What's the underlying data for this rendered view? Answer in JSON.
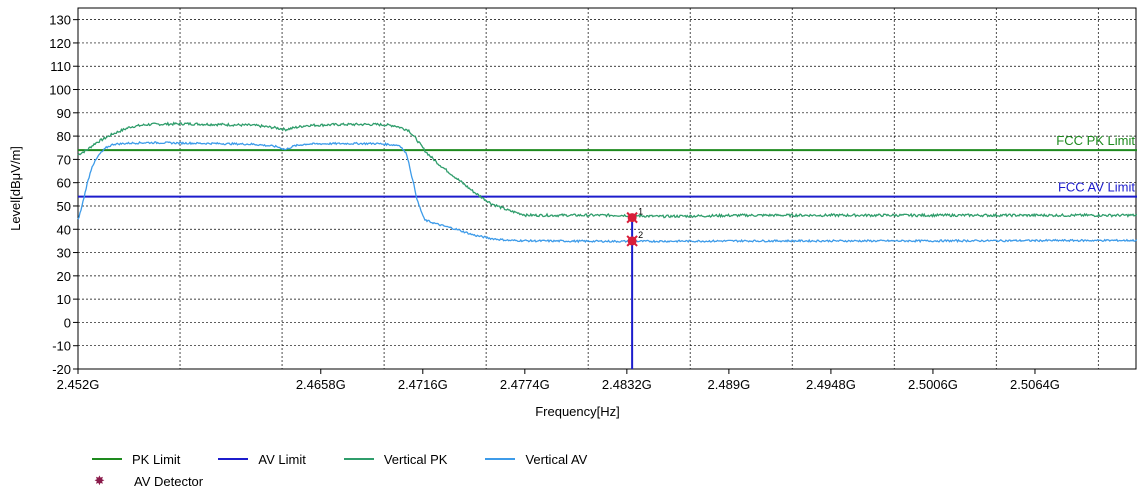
{
  "chart_data": {
    "type": "line",
    "xlabel": "Frequency[Hz]",
    "ylabel": "Level[dBμV/m]",
    "xlim": [
      2.452,
      2.5122
    ],
    "ylim": [
      -20,
      135
    ],
    "x_ticks": [
      {
        "value": 2.452,
        "label": "2.452G"
      },
      {
        "value": 2.4658,
        "label": "2.4658G"
      },
      {
        "value": 2.4716,
        "label": "2.4716G"
      },
      {
        "value": 2.4774,
        "label": "2.4774G"
      },
      {
        "value": 2.4832,
        "label": "2.4832G"
      },
      {
        "value": 2.489,
        "label": "2.489G"
      },
      {
        "value": 2.4948,
        "label": "2.4948G"
      },
      {
        "value": 2.5006,
        "label": "2.5006G"
      },
      {
        "value": 2.5064,
        "label": "2.5064G"
      }
    ],
    "x_grid": [
      2.452,
      2.4578,
      2.4636,
      2.4694,
      2.4752,
      2.481,
      2.4868,
      2.4926,
      2.4984,
      2.5042,
      2.51
    ],
    "y_ticks": [
      130,
      120,
      110,
      100,
      90,
      80,
      70,
      60,
      50,
      40,
      30,
      20,
      10,
      0,
      -10,
      -20
    ],
    "grid": true,
    "limits": [
      {
        "name": "PK Limit",
        "label": "FCC PK Limit",
        "value": 74,
        "color": "#1e8a1e"
      },
      {
        "name": "AV Limit",
        "label": "FCC AV Limit",
        "value": 54,
        "color": "#1c1ccc"
      }
    ],
    "series": [
      {
        "name": "Vertical PK",
        "color": "#2f9d6b",
        "x": [
          2.452,
          2.4525,
          2.453,
          2.454,
          2.455,
          2.456,
          2.458,
          2.46,
          2.462,
          2.4633,
          2.4638,
          2.4643,
          2.465,
          2.467,
          2.469,
          2.47,
          2.4708,
          2.4713,
          2.4718,
          2.4725,
          2.4735,
          2.4745,
          2.4755,
          2.4765,
          2.4775,
          2.479,
          2.483,
          2.485,
          2.49,
          2.495,
          2.5,
          2.505,
          2.51,
          2.5122
        ],
        "y": [
          72,
          74,
          77,
          81,
          84,
          85,
          85.3,
          85,
          84.6,
          83.5,
          82.8,
          83.6,
          84.6,
          85,
          85,
          84.5,
          82.5,
          78,
          73,
          68,
          62,
          56,
          51,
          48,
          46,
          46,
          46,
          45.5,
          46,
          46,
          46,
          46,
          46,
          46
        ]
      },
      {
        "name": "Vertical AV",
        "color": "#3d9be9",
        "x": [
          2.452,
          2.4522,
          2.4525,
          2.4528,
          2.4532,
          2.4536,
          2.454,
          2.455,
          2.456,
          2.458,
          2.46,
          2.462,
          2.4633,
          2.4638,
          2.4643,
          2.465,
          2.467,
          2.469,
          2.4703,
          2.4707,
          2.471,
          2.4713,
          2.4717,
          2.4725,
          2.4735,
          2.4745,
          2.4755,
          2.4765,
          2.478,
          2.483,
          2.49,
          2.5,
          2.51,
          2.5122
        ],
        "y": [
          44,
          49,
          59,
          67,
          72,
          75,
          76.5,
          77,
          77.2,
          77,
          76.8,
          76.5,
          75.5,
          74.2,
          75.8,
          76.6,
          76.8,
          76.8,
          76,
          72,
          62,
          52,
          44,
          42,
          40,
          37.5,
          36,
          35.2,
          35,
          34.8,
          35,
          35,
          35.2,
          35.2
        ]
      }
    ],
    "markers": [
      {
        "name": "AV Detector",
        "label": "1",
        "x": 2.4835,
        "y": 45,
        "color": "#d81e3a"
      },
      {
        "name": "AV Detector",
        "label": "2",
        "x": 2.4835,
        "y": 35,
        "color": "#d81e3a"
      }
    ],
    "legend": {
      "placement": "bottom-left",
      "items": [
        {
          "name": "PK Limit",
          "color": "#1e8a1e",
          "kind": "line"
        },
        {
          "name": "AV Limit",
          "color": "#1c1ccc",
          "kind": "line"
        },
        {
          "name": "Vertical PK",
          "color": "#2f9d6b",
          "kind": "line"
        },
        {
          "name": "Vertical AV",
          "color": "#3d9be9",
          "kind": "line"
        }
      ],
      "detector": {
        "name": "AV Detector",
        "icon": "asterisk-star-icon",
        "symbol": "✸",
        "color": "#8a1a4a"
      }
    }
  }
}
